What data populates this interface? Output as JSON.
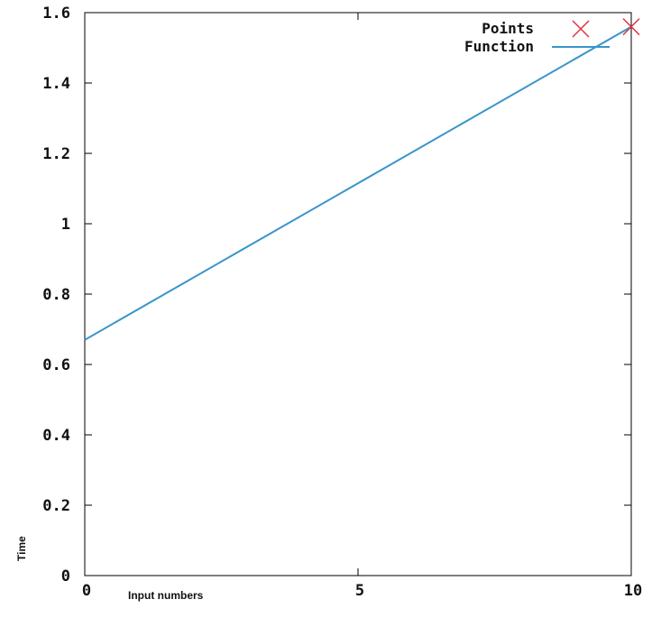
{
  "chart_data": {
    "type": "line",
    "xlabel": "Input numbers",
    "ylabel": "Time",
    "xlim": [
      0,
      10
    ],
    "ylim": [
      0,
      1.6
    ],
    "x_ticks": [
      "0",
      "5",
      "10"
    ],
    "y_ticks": [
      "0",
      "0.2",
      "0.4",
      "0.6",
      "0.8",
      "1",
      "1.2",
      "1.4",
      "1.6"
    ],
    "grid": false,
    "legend_position": "top-right",
    "series": [
      {
        "name": "Points",
        "kind": "scatter",
        "marker": "x",
        "color": "#e0303f",
        "x": [
          10
        ],
        "y": [
          1.56
        ]
      },
      {
        "name": "Function",
        "kind": "line",
        "color": "#3a95c9",
        "x": [
          0,
          10
        ],
        "y": [
          0.67,
          1.56
        ]
      }
    ]
  }
}
